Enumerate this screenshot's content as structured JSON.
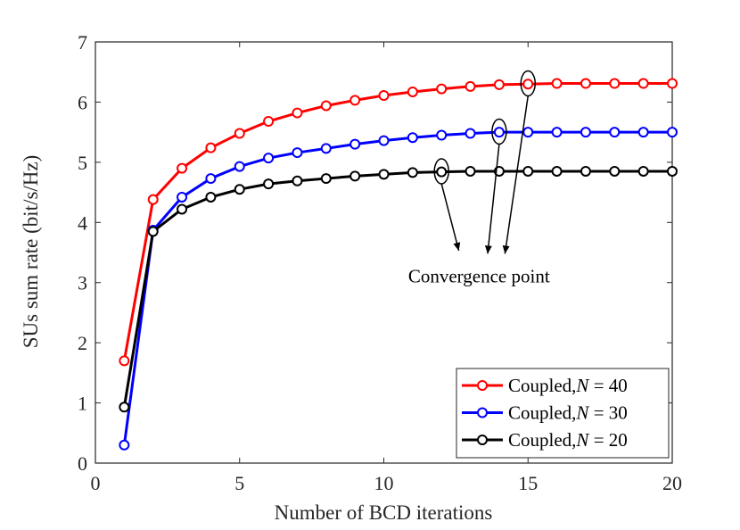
{
  "chart_data": {
    "type": "line",
    "title": "",
    "xlabel": "Number of BCD iterations",
    "ylabel": "SUs sum rate (bit/s/Hz)",
    "xlim": [
      0,
      20
    ],
    "ylim": [
      0,
      7
    ],
    "xticks": [
      0,
      5,
      10,
      15,
      20
    ],
    "yticks": [
      0,
      1,
      2,
      3,
      4,
      5,
      6,
      7
    ],
    "grid": false,
    "legend_position": "bottom-right",
    "x": [
      1,
      2,
      3,
      4,
      5,
      6,
      7,
      8,
      9,
      10,
      11,
      12,
      13,
      14,
      15,
      16,
      17,
      18,
      19,
      20
    ],
    "series": [
      {
        "name": "Coupled,",
        "name_var": "N",
        "name_eq": " = 40",
        "color": "#ff0000",
        "values": [
          1.7,
          4.38,
          4.9,
          5.24,
          5.48,
          5.68,
          5.82,
          5.94,
          6.03,
          6.11,
          6.17,
          6.22,
          6.26,
          6.29,
          6.3,
          6.31,
          6.31,
          6.31,
          6.31,
          6.31
        ]
      },
      {
        "name": "Coupled,",
        "name_var": "N",
        "name_eq": " = 30",
        "color": "#0000ff",
        "values": [
          0.3,
          3.87,
          4.42,
          4.73,
          4.93,
          5.07,
          5.16,
          5.23,
          5.3,
          5.36,
          5.41,
          5.45,
          5.48,
          5.5,
          5.5,
          5.5,
          5.5,
          5.5,
          5.5,
          5.5
        ]
      },
      {
        "name": "Coupled,",
        "name_var": "N",
        "name_eq": " = 20",
        "color": "#000000",
        "values": [
          0.93,
          3.85,
          4.22,
          4.42,
          4.55,
          4.64,
          4.69,
          4.73,
          4.77,
          4.8,
          4.83,
          4.84,
          4.85,
          4.85,
          4.85,
          4.85,
          4.85,
          4.85,
          4.85,
          4.85
        ]
      }
    ],
    "annotations": [
      {
        "text": "Convergence point",
        "anchor": [
          13.3,
          3.0
        ],
        "ellipses": [
          [
            12.0,
            4.85
          ],
          [
            14.0,
            5.51
          ],
          [
            15.0,
            6.31
          ]
        ],
        "arrow_tips": [
          [
            12.6,
            3.53
          ],
          [
            13.6,
            3.48
          ],
          [
            14.2,
            3.48
          ]
        ]
      }
    ]
  }
}
